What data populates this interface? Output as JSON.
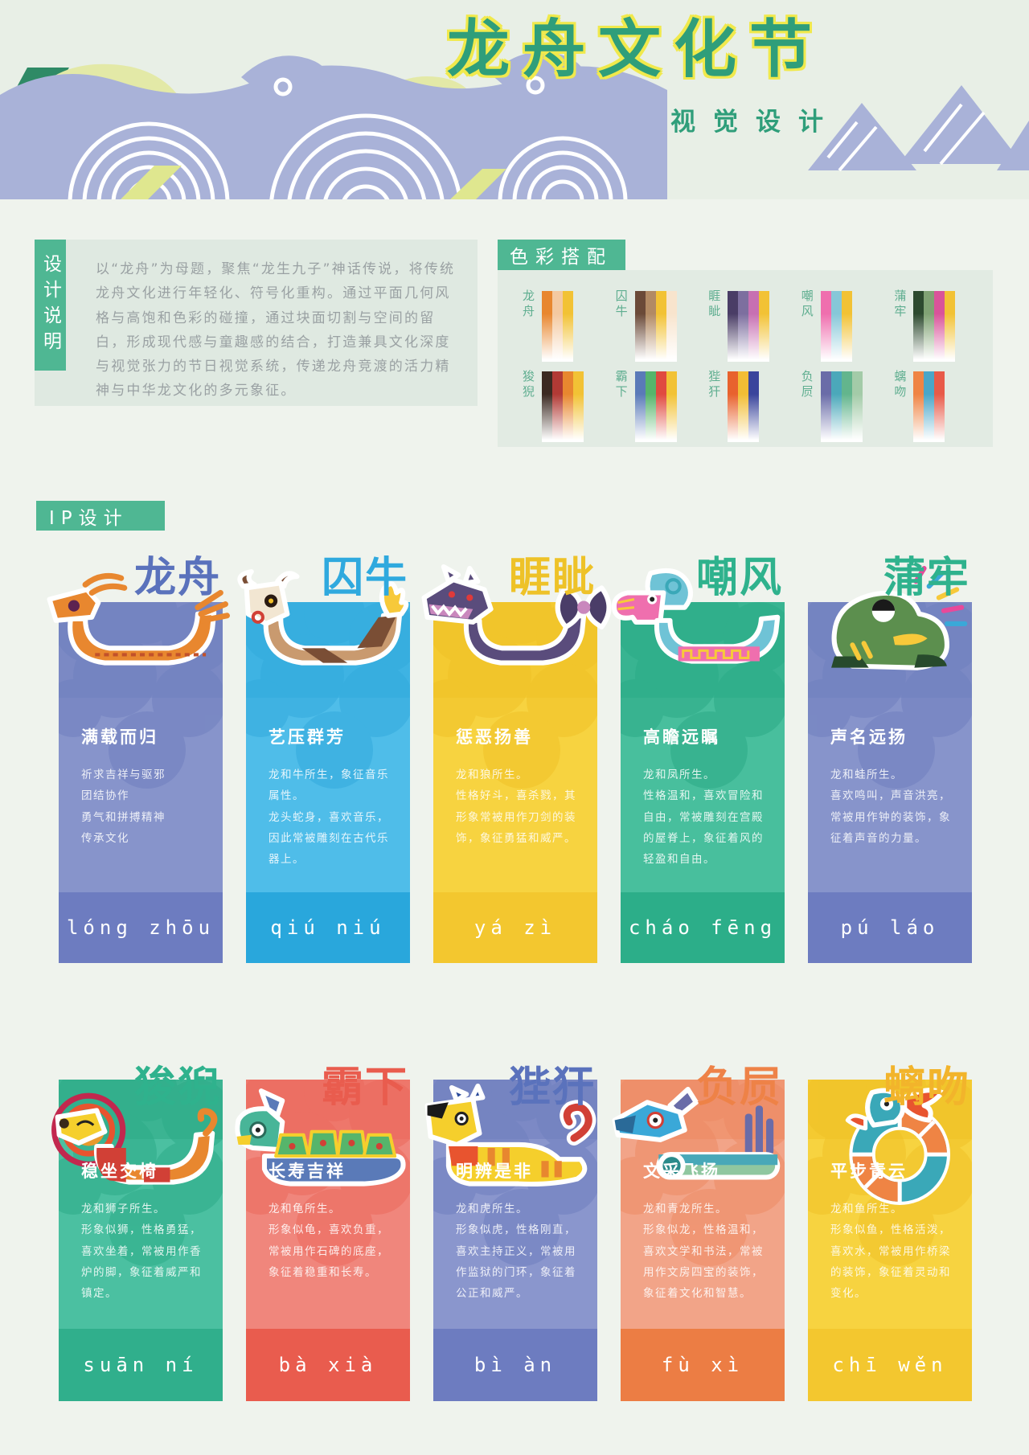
{
  "theme": {
    "accent": "#4fb793"
  },
  "header": {
    "title": "龙舟文化节",
    "subtitle": "视觉设计",
    "title_color": "#2f9e7a",
    "title_outline": "#f0e94c",
    "wave_purple": "#a9b2d8",
    "wave_yellow": "#e3e9a7",
    "wave_green": "#2f8a66"
  },
  "design_note": {
    "tab": "设计说明",
    "paragraph": "以“龙舟”为母题，聚焦“龙生九子”神话传说，将传统龙舟文化进行年轻化、符号化重构。通过平面几何风格与高饱和色彩的碰撞，通过块面切割与空间的留白，形成现代感与童趣感的结合，打造兼具文化深度与视觉张力的节日视觉系统，传递龙舟竞渡的活力精神与中华龙文化的多元象征。"
  },
  "palette": {
    "title": "色彩搭配",
    "swatches": [
      {
        "label": "龙舟",
        "colors": [
          "#e8872f",
          "#f4c9a0",
          "#f2c235"
        ]
      },
      {
        "label": "囚牛",
        "colors": [
          "#6b4a38",
          "#b28a64",
          "#f2c235",
          "#f8e4cd"
        ]
      },
      {
        "label": "睚眦",
        "colors": [
          "#4a3d66",
          "#7d6f9f",
          "#c770b2",
          "#f2c235"
        ]
      },
      {
        "label": "嘲风",
        "colors": [
          "#ef6fae",
          "#86c7d8",
          "#f2c235"
        ]
      },
      {
        "label": "蒲牢",
        "colors": [
          "#2d4a2f",
          "#80a274",
          "#d9539a",
          "#f2c235"
        ]
      },
      {
        "label": "狻猊",
        "colors": [
          "#3b2a21",
          "#b13a35",
          "#e8872f",
          "#f2c235"
        ]
      },
      {
        "label": "霸下",
        "colors": [
          "#5a7ab8",
          "#56b56b",
          "#e04a40",
          "#f2c235"
        ]
      },
      {
        "label": "狴犴",
        "colors": [
          "#e8622e",
          "#f2bd35",
          "#3a459c"
        ]
      },
      {
        "label": "负屃",
        "colors": [
          "#6a6ca8",
          "#4ba8ba",
          "#63b58d",
          "#a3cba8"
        ]
      },
      {
        "label": "螭吻",
        "colors": [
          "#ef8444",
          "#4aa6c8",
          "#e85a49"
        ]
      }
    ]
  },
  "ip": {
    "title": "IP设计",
    "cards": [
      {
        "title": "龙舟",
        "subtitle": "满载而归",
        "body": "祈求吉祥与驱邪\n团结协作\n勇气和拼搏精神\n传承文化",
        "pinyin": "lóng zhōu",
        "colors": {
          "panel": "#8794cb",
          "band": "#7b89c4",
          "flower": "#7080bf",
          "bar": "#6d7cc0",
          "title": "#5a72bc"
        }
      },
      {
        "title": "囚牛",
        "subtitle": "艺压群芳",
        "body": "龙和牛所生，象征音乐属性。\n龙头蛇身，喜欢音乐，因此常被雕刻在古代乐器上。",
        "pinyin": "qiú niú",
        "colors": {
          "panel": "#4fbde9",
          "band": "#3eb3e3",
          "flower": "#32aadd",
          "bar": "#29a7dc",
          "title": "#2fa9de"
        }
      },
      {
        "title": "睚眦",
        "subtitle": "惩恶扬善",
        "body": "龙和狼所生。\n性格好斗，喜杀戮，其形象常被用作刀剑的装饰，象征勇猛和威严。",
        "pinyin": "yá zì",
        "colors": {
          "panel": "#f7d340",
          "band": "#f4ca31",
          "flower": "#f0c127",
          "bar": "#f3c72f",
          "title": "#eec228"
        }
      },
      {
        "title": "嘲风",
        "subtitle": "高瞻远瞩",
        "body": "龙和凤所生。\n性格温和，喜欢冒险和自由，常被雕刻在宫殿的屋脊上，象征着风的轻盈和自由。",
        "pinyin": "cháo fēng",
        "colors": {
          "panel": "#48bf9d",
          "band": "#38b491",
          "flower": "#2bab87",
          "bar": "#2cae89",
          "title": "#2fb28d"
        }
      },
      {
        "title": "蒲牢",
        "subtitle": "声名远扬",
        "body": "龙和蛙所生。\n喜欢鸣叫，声音洪亮，常被用作钟的装饰，象征着声音的力量。",
        "pinyin": "pú láo",
        "colors": {
          "panel": "#8794cb",
          "band": "#7b89c4",
          "flower": "#7080bf",
          "bar": "#6d7cc0",
          "title": "#2fb28d"
        }
      },
      {
        "title": "狻猊",
        "subtitle": "稳坐交椅",
        "body": "龙和狮子所生。\n形象似狮，性格勇猛，喜欢坐着，常被用作香炉的脚，象征着威严和镇定。",
        "pinyin": "suān ní",
        "colors": {
          "panel": "#4bc0a1",
          "band": "#3bb492",
          "flower": "#2dac88",
          "bar": "#30af8c",
          "title": "#2fb28d"
        }
      },
      {
        "title": "霸下",
        "subtitle": "长寿吉祥",
        "body": "龙和龟所生。\n形象似龟，喜欢负重，常被用作石碑的底座，象征着稳重和长寿。",
        "pinyin": "bà xià",
        "colors": {
          "panel": "#f0867c",
          "band": "#ee776b",
          "flower": "#ec695d",
          "bar": "#e95c4e",
          "title": "#e95c4e"
        }
      },
      {
        "title": "狴犴",
        "subtitle": "明辨是非",
        "body": "龙和虎所生。\n形象似虎，性格刚直，喜欢主持正义，常被用作监狱的门环，象征着公正和威严。",
        "pinyin": "bì àn",
        "colors": {
          "panel": "#8a96cd",
          "band": "#7c89c5",
          "flower": "#7080bf",
          "bar": "#6d7cc0",
          "title": "#5a72bc"
        }
      },
      {
        "title": "负屃",
        "subtitle": "文采飞扬",
        "body": "龙和青龙所生。\n形象似龙，性格温和，喜欢文学和书法，常被用作文房四宝的装饰，象征着文化和智慧。",
        "pinyin": "fù xì",
        "colors": {
          "panel": "#f2a488",
          "band": "#f09672",
          "flower": "#ee8b64",
          "bar": "#ec7d44",
          "title": "#ee8247"
        }
      },
      {
        "title": "螭吻",
        "subtitle": "平步青云",
        "body": "龙和鱼所生。\n形象似鱼，性格活泼，喜欢水，常被用作桥梁的装饰，象征着灵动和变化。",
        "pinyin": "chī wěn",
        "colors": {
          "panel": "#f7d340",
          "band": "#f4ca31",
          "flower": "#f0c127",
          "bar": "#f3c72f",
          "title": "#f2b42b"
        }
      }
    ]
  }
}
